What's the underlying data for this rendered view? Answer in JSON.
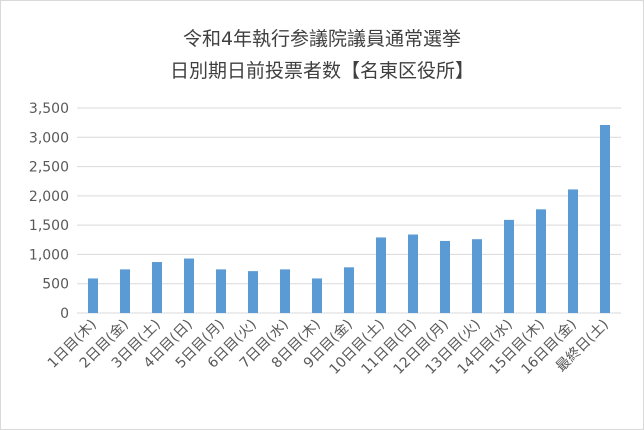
{
  "chart_data": {
    "type": "bar",
    "title_lines": [
      "令和4年執行参議院議員通常選挙",
      "日別期日前投票者数【名東区役所】"
    ],
    "categories": [
      "1日目(木)",
      "2日目(金)",
      "3日目(土)",
      "4日目(日)",
      "5日目(月)",
      "6日目(火)",
      "7日目(水)",
      "8日目(木)",
      "9日目(金)",
      "10日目(土)",
      "11日目(日)",
      "12日目(月)",
      "13日目(火)",
      "14日目(水)",
      "15日目(木)",
      "16日目(金)",
      "最終日(土)"
    ],
    "values": [
      590,
      745,
      870,
      930,
      745,
      715,
      745,
      590,
      780,
      1290,
      1340,
      1230,
      1260,
      1590,
      1770,
      2110,
      3210
    ],
    "ylim": [
      0,
      3500
    ],
    "yticks": [
      0,
      500,
      1000,
      1500,
      2000,
      2500,
      3000,
      3500
    ],
    "ytick_labels": [
      "0",
      "500",
      "1,000",
      "1,500",
      "2,000",
      "2,500",
      "3,000",
      "3,500"
    ],
    "grid": true,
    "legend": "none",
    "bar_color": "#5b9bd5",
    "grid_color": "#d9d9d9"
  }
}
